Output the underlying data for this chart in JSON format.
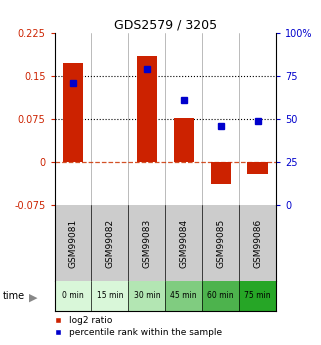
{
  "title": "GDS2579 / 3205",
  "samples": [
    "GSM99081",
    "GSM99082",
    "GSM99083",
    "GSM99084",
    "GSM99085",
    "GSM99086"
  ],
  "time_labels": [
    "0 min",
    "15 min",
    "30 min",
    "45 min",
    "60 min",
    "75 min"
  ],
  "time_bg_colors": [
    "#d9f7d9",
    "#d9f7d9",
    "#b3e6b3",
    "#80cc80",
    "#4db34d",
    "#26a626"
  ],
  "log2_ratio": [
    0.172,
    0.0,
    0.185,
    0.077,
    -0.038,
    -0.02
  ],
  "percentile_rank": [
    71,
    null,
    79,
    61,
    46,
    49
  ],
  "ylim_left": [
    -0.075,
    0.225
  ],
  "ylim_right": [
    0,
    100
  ],
  "yticks_left": [
    -0.075,
    0,
    0.075,
    0.15,
    0.225
  ],
  "yticks_right": [
    0,
    25,
    50,
    75,
    100
  ],
  "ytick_labels_left": [
    "-0.075",
    "0",
    "0.075",
    "0.15",
    "0.225"
  ],
  "ytick_labels_right": [
    "0",
    "25",
    "50",
    "75",
    "100%"
  ],
  "hline_dotted": [
    0.075,
    0.15
  ],
  "hline_dashed": 0.0,
  "bar_color": "#cc2200",
  "dot_color": "#0000cc",
  "legend_log2": "log2 ratio",
  "legend_pct": "percentile rank within the sample",
  "sample_bg_color": "#cccccc"
}
